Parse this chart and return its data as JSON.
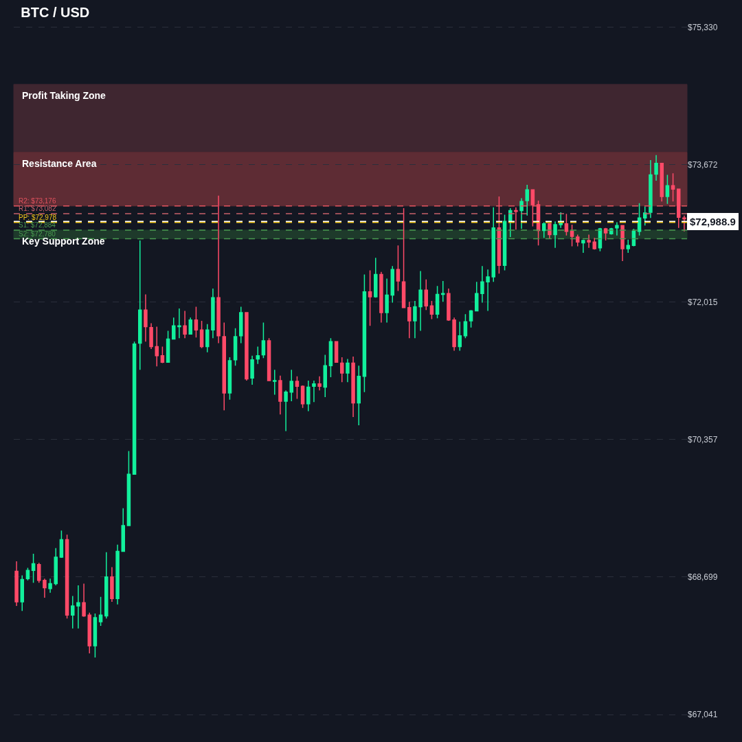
{
  "chart_data": {
    "type": "candlestick",
    "title": "BTC / USD",
    "categories": [
      null,
      null,
      null,
      null,
      null,
      null,
      null,
      null,
      null,
      null,
      null,
      null,
      null,
      null,
      null,
      null,
      null,
      null,
      null,
      null,
      null,
      null,
      null,
      null,
      null,
      null,
      null,
      null,
      null,
      null,
      null,
      null,
      null,
      null,
      null,
      null,
      null,
      null,
      null,
      null,
      null,
      null,
      null,
      null,
      null,
      null,
      null,
      null,
      null,
      null,
      null,
      null,
      null,
      null,
      null,
      null,
      null,
      null,
      null,
      null,
      null,
      null,
      null,
      null,
      null,
      null,
      null,
      null,
      null,
      null,
      null,
      null,
      null,
      null,
      null,
      null,
      null,
      null,
      null,
      null,
      null,
      null,
      null,
      null,
      null,
      null,
      null,
      null,
      null,
      null,
      null,
      null,
      null,
      null,
      null,
      null,
      null,
      null,
      null,
      null,
      null,
      null,
      null,
      null,
      null,
      null,
      null,
      null,
      null,
      null,
      null,
      null,
      null,
      null,
      null,
      null,
      null,
      null,
      null,
      null
    ],
    "ohlc": [
      [
        68770,
        68890,
        68350,
        68400
      ],
      [
        68400,
        68720,
        68290,
        68670
      ],
      [
        68680,
        68810,
        68660,
        68780
      ],
      [
        68780,
        68980,
        68630,
        68860
      ],
      [
        68850,
        68870,
        68630,
        68660
      ],
      [
        68660,
        68680,
        68450,
        68570
      ],
      [
        68560,
        68680,
        68510,
        68620
      ],
      [
        68620,
        69050,
        68600,
        68940
      ],
      [
        68940,
        69260,
        68930,
        69150
      ],
      [
        69150,
        69210,
        68200,
        68240
      ],
      [
        68240,
        68470,
        68080,
        68350
      ],
      [
        68350,
        68600,
        68080,
        68390
      ],
      [
        68390,
        68620,
        68220,
        68230
      ],
      [
        68240,
        68270,
        67780,
        67870
      ],
      [
        67870,
        68260,
        67730,
        68210
      ],
      [
        68160,
        68460,
        68110,
        68240
      ],
      [
        68230,
        69000,
        68200,
        68700
      ],
      [
        68700,
        68820,
        68400,
        68440
      ],
      [
        68440,
        69090,
        68370,
        69010
      ],
      [
        69010,
        69530,
        69010,
        69320
      ],
      [
        69320,
        70220,
        69320,
        69940
      ],
      [
        69940,
        71540,
        69940,
        71510
      ],
      [
        71520,
        72760,
        71200,
        71920
      ],
      [
        71920,
        72110,
        71540,
        71720
      ],
      [
        71710,
        71760,
        71450,
        71480
      ],
      [
        71480,
        71720,
        71240,
        71370
      ],
      [
        71370,
        71480,
        71280,
        71290
      ],
      [
        71290,
        71670,
        71290,
        71570
      ],
      [
        71570,
        71830,
        71570,
        71730
      ],
      [
        71720,
        71940,
        71580,
        71730
      ],
      [
        71730,
        71910,
        71580,
        71630
      ],
      [
        71630,
        71830,
        71630,
        71800
      ],
      [
        71800,
        71960,
        71590,
        71680
      ],
      [
        71680,
        71790,
        71460,
        71480
      ],
      [
        71480,
        71750,
        71410,
        71680
      ],
      [
        71680,
        72180,
        71580,
        72070
      ],
      [
        72070,
        73300,
        71520,
        71610
      ],
      [
        71600,
        71770,
        70710,
        70920
      ],
      [
        70920,
        71350,
        70840,
        71310
      ],
      [
        71320,
        71700,
        71250,
        71600
      ],
      [
        71610,
        71960,
        71520,
        71890
      ],
      [
        71890,
        71890,
        71070,
        71090
      ],
      [
        71100,
        71370,
        71020,
        71320
      ],
      [
        71330,
        71480,
        71270,
        71370
      ],
      [
        71380,
        71770,
        71340,
        71550
      ],
      [
        71550,
        71580,
        71070,
        71070
      ],
      [
        71060,
        71200,
        70900,
        71070
      ],
      [
        71070,
        71130,
        70660,
        70820
      ],
      [
        70820,
        70950,
        70460,
        70930
      ],
      [
        70930,
        71200,
        70820,
        71060
      ],
      [
        71060,
        71120,
        70850,
        71000
      ],
      [
        71000,
        71010,
        70740,
        70790
      ],
      [
        70790,
        71070,
        70700,
        70990
      ],
      [
        71000,
        71070,
        70810,
        71030
      ],
      [
        71030,
        71120,
        70950,
        71000
      ],
      [
        70990,
        71380,
        70870,
        71250
      ],
      [
        71250,
        71580,
        71110,
        71540
      ],
      [
        71540,
        71540,
        71290,
        71290
      ],
      [
        71280,
        71350,
        71050,
        71160
      ],
      [
        71160,
        71330,
        71050,
        71280
      ],
      [
        71280,
        71360,
        70630,
        70800
      ],
      [
        70800,
        71250,
        70530,
        71120
      ],
      [
        71120,
        72350,
        70930,
        72140
      ],
      [
        72140,
        72400,
        71730,
        72080
      ],
      [
        72080,
        72550,
        72070,
        72350
      ],
      [
        72350,
        72380,
        71770,
        71890
      ],
      [
        71890,
        72300,
        71770,
        72100
      ],
      [
        72100,
        72450,
        72010,
        72410
      ],
      [
        72410,
        72700,
        72150,
        72270
      ],
      [
        72260,
        73150,
        71950,
        71950
      ],
      [
        71950,
        72020,
        71580,
        71790
      ],
      [
        71790,
        72030,
        71580,
        71960
      ],
      [
        71960,
        72390,
        71670,
        72160
      ],
      [
        72160,
        72290,
        71920,
        71970
      ],
      [
        71970,
        72030,
        71810,
        71870
      ],
      [
        71870,
        72210,
        71820,
        72110
      ],
      [
        72110,
        72270,
        72020,
        72120
      ],
      [
        72120,
        72180,
        71790,
        71800
      ],
      [
        71800,
        71830,
        71430,
        71480
      ],
      [
        71480,
        71780,
        71430,
        71610
      ],
      [
        71610,
        71870,
        71580,
        71780
      ],
      [
        71790,
        71920,
        71710,
        71910
      ],
      [
        71910,
        72260,
        71910,
        72120
      ],
      [
        72120,
        72450,
        72010,
        72260
      ],
      [
        72260,
        72410,
        71910,
        72320
      ],
      [
        72320,
        73160,
        72260,
        72910
      ],
      [
        72910,
        73290,
        72360,
        72460
      ],
      [
        72460,
        73070,
        72400,
        72990
      ],
      [
        72990,
        73150,
        72800,
        73120
      ],
      [
        73120,
        73160,
        72890,
        73110
      ],
      [
        73120,
        73270,
        72900,
        73230
      ],
      [
        73240,
        73430,
        73060,
        73370
      ],
      [
        73370,
        73370,
        72930,
        73190
      ],
      [
        73190,
        73240,
        72700,
        72880
      ],
      [
        72880,
        72980,
        72790,
        72960
      ],
      [
        72960,
        72960,
        72780,
        72830
      ],
      [
        72830,
        72990,
        72670,
        72950
      ],
      [
        72950,
        73100,
        72910,
        72970
      ],
      [
        72960,
        73080,
        72820,
        72870
      ],
      [
        72870,
        72950,
        72690,
        72810
      ],
      [
        72800,
        72830,
        72690,
        72740
      ],
      [
        72730,
        72770,
        72610,
        72760
      ],
      [
        72760,
        72830,
        72670,
        72740
      ],
      [
        72740,
        72790,
        72650,
        72660
      ],
      [
        72670,
        72910,
        72630,
        72900
      ],
      [
        72900,
        72910,
        72760,
        72850
      ],
      [
        72840,
        72910,
        72830,
        72900
      ],
      [
        72910,
        72980,
        72820,
        72940
      ],
      [
        72940,
        72940,
        72510,
        72660
      ],
      [
        72660,
        72770,
        72610,
        72700
      ],
      [
        72700,
        72900,
        72690,
        72870
      ],
      [
        72870,
        73210,
        72820,
        73030
      ],
      [
        73030,
        73170,
        72940,
        73090
      ],
      [
        73100,
        73730,
        73030,
        73550
      ],
      [
        73560,
        73790,
        73480,
        73690
      ],
      [
        73690,
        73690,
        73230,
        73290
      ],
      [
        73290,
        73550,
        73200,
        73420
      ],
      [
        73420,
        73570,
        73230,
        73380
      ],
      [
        73380,
        73380,
        72910,
        73040
      ],
      [
        73030,
        73060,
        72870,
        73020
      ]
    ],
    "ylim": [
      66710,
      75660
    ],
    "yticks": [
      {
        "value": 75330,
        "label": "$75,330"
      },
      {
        "value": 73672,
        "label": "$73,672"
      },
      {
        "value": 72015,
        "label": "$72,015"
      },
      {
        "value": 70357,
        "label": "$70,357"
      },
      {
        "value": 68699,
        "label": "$68,699"
      },
      {
        "value": 67041,
        "label": "$67,041"
      }
    ],
    "grid": "y",
    "tick_labels": "y",
    "bands": [
      {
        "axis": "y",
        "from": 73822,
        "to": 74642,
        "label": "Profit Taking Zone",
        "color": "#3f2630"
      },
      {
        "axis": "y",
        "from": 73176,
        "to": 73822,
        "label": "Resistance Area",
        "color": "#5e2c34"
      },
      {
        "axis": "y",
        "from": 72780,
        "to": 72884,
        "label": "Key Support Zone",
        "color": "#1e3a2b"
      }
    ],
    "ref_lines": [
      {
        "axis": "y",
        "value": 73176,
        "label": "R2: $73,176",
        "color": "#e2525e",
        "line_style": "dashed"
      },
      {
        "axis": "y",
        "value": 73082,
        "label": "R1: $73,082",
        "color": "#c9626b",
        "line_style": "dashed"
      },
      {
        "axis": "y",
        "value": 72978,
        "label": "PP: $72,978",
        "color": "#f2c618",
        "line_style": "dashed"
      },
      {
        "axis": "y",
        "value": 72884,
        "label": "S1: $72,884",
        "color": "#4a9a50",
        "line_style": "dashed"
      },
      {
        "axis": "y",
        "value": 72780,
        "label": "S2: $72,780",
        "color": "#4a9a50",
        "line_style": "dashed"
      },
      {
        "axis": "y",
        "value": 72988.9,
        "label": "$72,988.9",
        "color": "#ffffff",
        "line_style": "dashed"
      }
    ]
  }
}
